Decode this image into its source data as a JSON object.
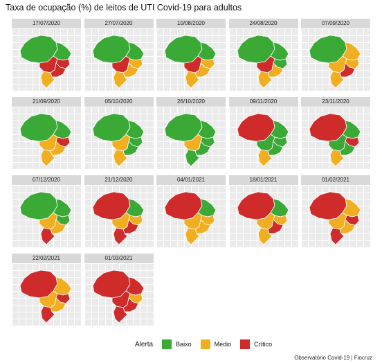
{
  "title": "Taxa de ocupação (%) de leitos de UTI Covid-19 para adultos",
  "colors": {
    "baixo": "#3aa936",
    "medio": "#f2ae21",
    "critico": "#cf2b2b"
  },
  "legend": {
    "title": "Alerta",
    "items": [
      {
        "label": "Baixo",
        "level": "baixo"
      },
      {
        "label": "Médio",
        "level": "medio"
      },
      {
        "label": "Crítico",
        "level": "critico"
      }
    ]
  },
  "source": "Observatório Covid-19 | Fiocruz",
  "panels": [
    {
      "date": "17/07/2020",
      "levels": {
        "N": "baixo",
        "NE": "baixo",
        "NEs": "critico",
        "CO": "critico",
        "SE": "critico",
        "S": "medio"
      }
    },
    {
      "date": "27/07/2020",
      "levels": {
        "N": "baixo",
        "NE": "baixo",
        "NEs": "medio",
        "CO": "critico",
        "SE": "medio",
        "S": "medio"
      }
    },
    {
      "date": "10/08/2020",
      "levels": {
        "N": "baixo",
        "NE": "baixo",
        "NEs": "medio",
        "CO": "critico",
        "SE": "medio",
        "S": "medio"
      }
    },
    {
      "date": "24/08/2020",
      "levels": {
        "N": "baixo",
        "NE": "baixo",
        "NEs": "baixo",
        "CO": "critico",
        "SE": "medio",
        "S": "medio"
      }
    },
    {
      "date": "07/09/2020",
      "levels": {
        "N": "baixo",
        "NE": "medio",
        "NEs": "medio",
        "CO": "medio",
        "SE": "critico",
        "S": "medio"
      }
    },
    {
      "date": "21/09/2020",
      "levels": {
        "N": "baixo",
        "NE": "baixo",
        "NEs": "critico",
        "CO": "medio",
        "SE": "medio",
        "S": "medio"
      }
    },
    {
      "date": "05/10/2020",
      "levels": {
        "N": "baixo",
        "NE": "baixo",
        "NEs": "baixo",
        "CO": "medio",
        "SE": "baixo",
        "S": "medio"
      }
    },
    {
      "date": "26/10/2020",
      "levels": {
        "N": "baixo",
        "NE": "baixo",
        "NEs": "baixo",
        "CO": "medio",
        "SE": "baixo",
        "S": "baixo"
      }
    },
    {
      "date": "09/11/2020",
      "levels": {
        "N": "critico",
        "NE": "baixo",
        "NEs": "baixo",
        "CO": "baixo",
        "SE": "baixo",
        "S": "medio"
      }
    },
    {
      "date": "23/11/2020",
      "levels": {
        "N": "critico",
        "NE": "baixo",
        "NEs": "critico",
        "CO": "baixo",
        "SE": "baixo",
        "S": "medio"
      }
    },
    {
      "date": "07/12/2020",
      "levels": {
        "N": "baixo",
        "NE": "baixo",
        "NEs": "baixo",
        "CO": "medio",
        "SE": "medio",
        "S": "critico"
      }
    },
    {
      "date": "21/12/2020",
      "levels": {
        "N": "critico",
        "NE": "baixo",
        "NEs": "medio",
        "CO": "medio",
        "SE": "critico",
        "S": "critico"
      }
    },
    {
      "date": "04/01/2021",
      "levels": {
        "N": "critico",
        "NE": "baixo",
        "NEs": "medio",
        "CO": "medio",
        "SE": "medio",
        "S": "medio"
      }
    },
    {
      "date": "18/01/2021",
      "levels": {
        "N": "critico",
        "NE": "baixo",
        "NEs": "medio",
        "CO": "medio",
        "SE": "critico",
        "S": "medio"
      }
    },
    {
      "date": "01/02/2021",
      "levels": {
        "N": "critico",
        "NE": "medio",
        "NEs": "critico",
        "CO": "medio",
        "SE": "medio",
        "S": "critico"
      }
    },
    {
      "date": "22/02/2021",
      "levels": {
        "N": "critico",
        "NE": "medio",
        "NEs": "critico",
        "CO": "medio",
        "SE": "medio",
        "S": "critico"
      }
    },
    {
      "date": "01/03/2021",
      "levels": {
        "N": "critico",
        "NE": "critico",
        "NEs": "medio",
        "CO": "critico",
        "SE": "critico",
        "S": "critico"
      }
    }
  ]
}
